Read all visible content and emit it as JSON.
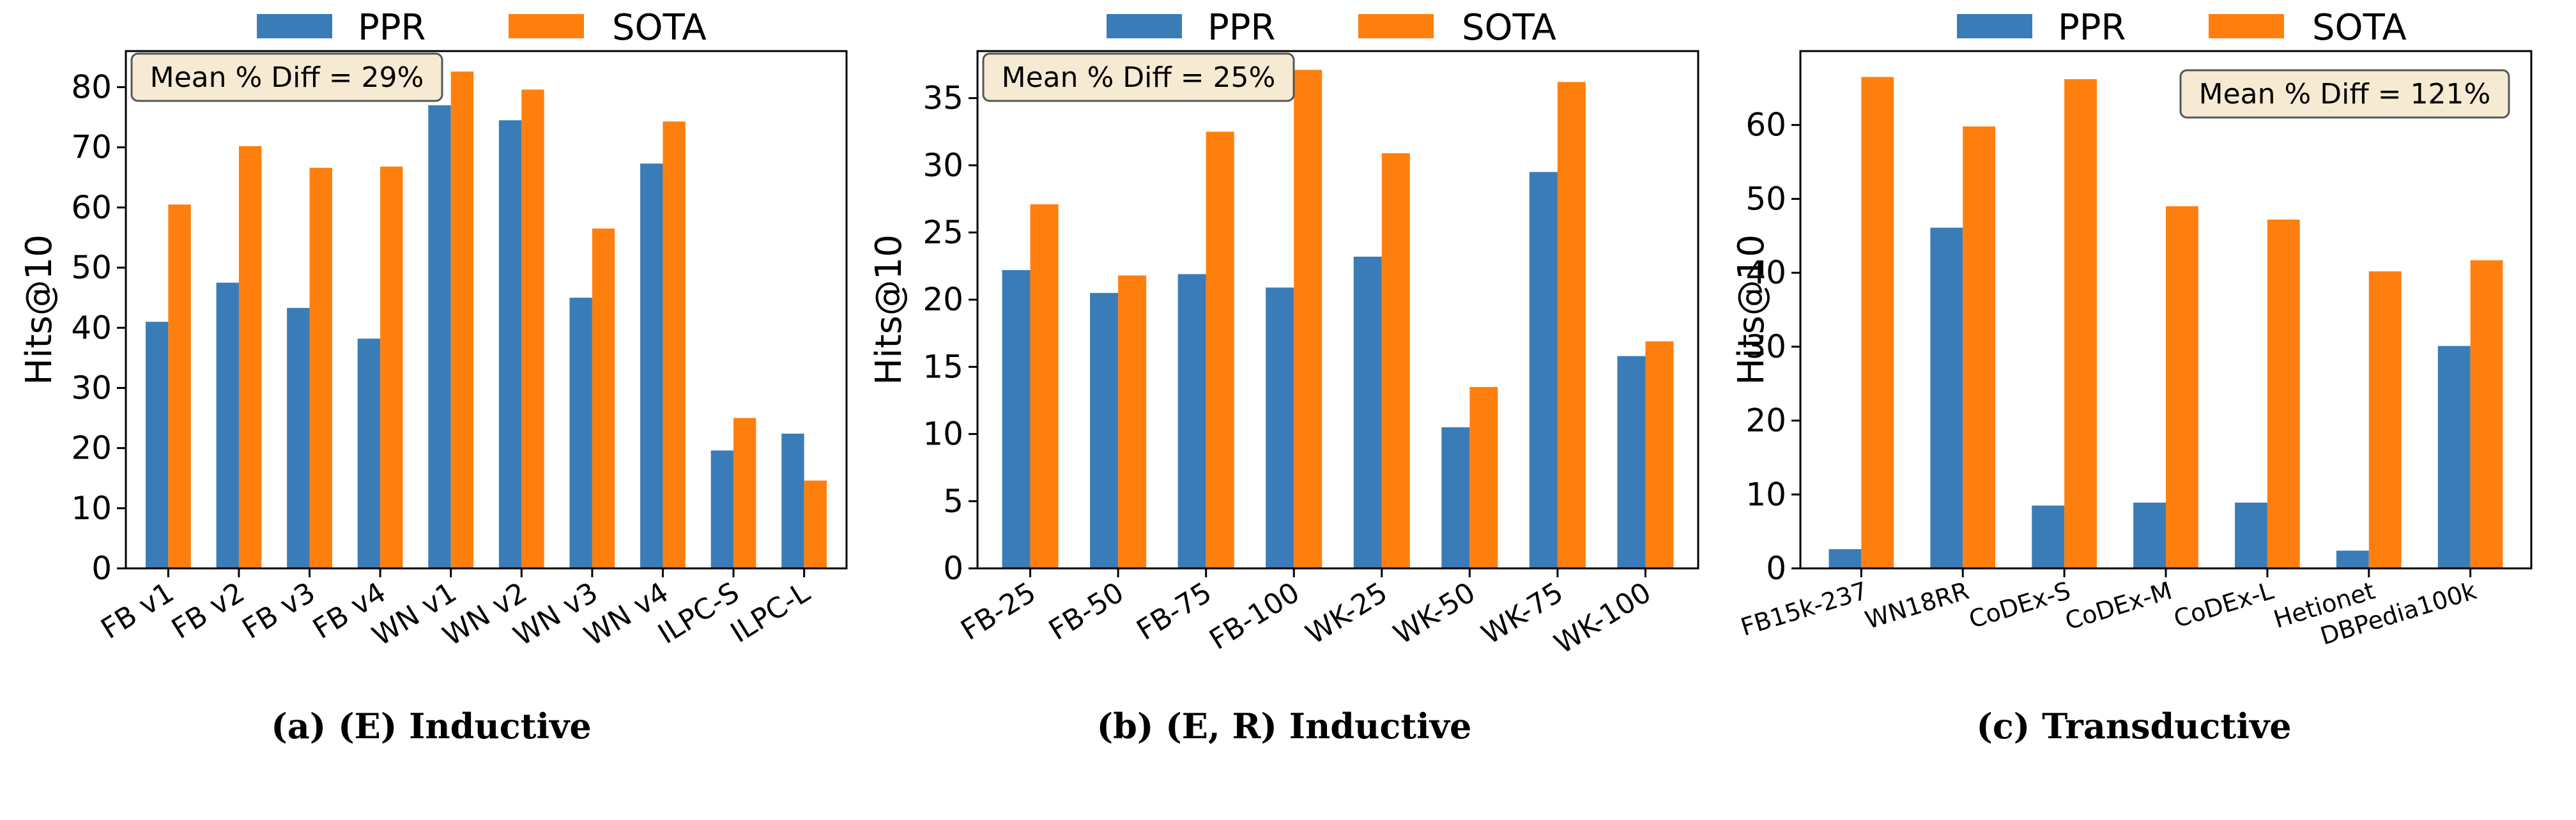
{
  "colors": {
    "ppr": "#3a7cb8",
    "sota": "#ff7f0e",
    "annot_bg": "#f6ead2",
    "annot_edge": "#555555"
  },
  "chart_data": [
    {
      "type": "bar",
      "caption": "(a) (E) Inductive",
      "ylabel": "Hits@10",
      "ylim": [
        0,
        86
      ],
      "yticks": [
        0,
        10,
        20,
        30,
        40,
        50,
        60,
        70,
        80
      ],
      "legend": [
        "PPR",
        "SOTA"
      ],
      "legend_position": "top-center",
      "annotation": "Mean % Diff = 29%",
      "annotation_position": "top-left",
      "categories": [
        "FB v1",
        "FB v2",
        "FB v3",
        "FB v4",
        "WN v1",
        "WN v2",
        "WN v3",
        "WN v4",
        "ILPC-S",
        "ILPC-L"
      ],
      "series": [
        {
          "name": "PPR",
          "values": [
            41.0,
            47.5,
            43.3,
            38.2,
            77.0,
            74.5,
            45.0,
            67.3,
            19.6,
            22.4
          ]
        },
        {
          "name": "SOTA",
          "values": [
            60.5,
            70.2,
            66.6,
            66.8,
            82.6,
            79.6,
            56.5,
            74.3,
            25.0,
            14.6
          ]
        }
      ]
    },
    {
      "type": "bar",
      "caption": "(b) (E, R) Inductive",
      "ylabel": "Hits@10",
      "ylim": [
        0,
        38.5
      ],
      "yticks": [
        0,
        5,
        10,
        15,
        20,
        25,
        30,
        35
      ],
      "legend": [
        "PPR",
        "SOTA"
      ],
      "legend_position": "top-center",
      "annotation": "Mean % Diff = 25%",
      "annotation_position": "top-left",
      "categories": [
        "FB-25",
        "FB-50",
        "FB-75",
        "FB-100",
        "WK-25",
        "WK-50",
        "WK-75",
        "WK-100"
      ],
      "series": [
        {
          "name": "PPR",
          "values": [
            22.2,
            20.5,
            21.9,
            20.9,
            23.2,
            10.5,
            29.5,
            15.8
          ]
        },
        {
          "name": "SOTA",
          "values": [
            27.1,
            21.8,
            32.5,
            37.1,
            30.9,
            13.5,
            36.2,
            16.9
          ]
        }
      ]
    },
    {
      "type": "bar",
      "caption": "(c) Transductive",
      "ylabel": "Hits@10",
      "ylim": [
        0,
        70
      ],
      "yticks": [
        0,
        10,
        20,
        30,
        40,
        50,
        60
      ],
      "legend": [
        "PPR",
        "SOTA"
      ],
      "legend_position": "top-center",
      "annotation": "Mean % Diff = 121%",
      "annotation_position": "top-right",
      "categories": [
        "FB15k-237",
        "WN18RR",
        "CoDEx-S",
        "CoDEx-M",
        "CoDEx-L",
        "Hetionet",
        "DBPedia100k"
      ],
      "series": [
        {
          "name": "PPR",
          "values": [
            2.6,
            46.1,
            8.5,
            8.9,
            8.9,
            2.4,
            30.1
          ]
        },
        {
          "name": "SOTA",
          "values": [
            66.5,
            59.8,
            66.2,
            49.0,
            47.2,
            40.2,
            41.7
          ]
        }
      ]
    }
  ]
}
